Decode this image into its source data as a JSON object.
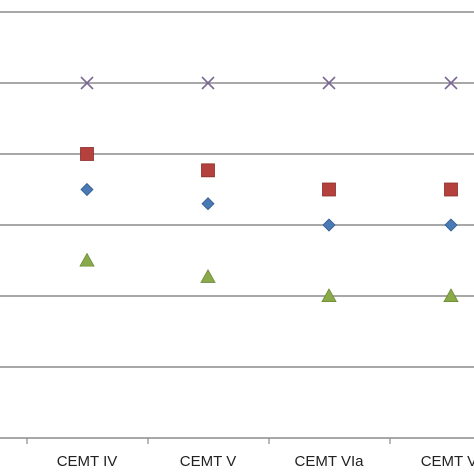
{
  "chart_data": {
    "type": "scatter",
    "title": "",
    "xlabel": "",
    "ylabel": "",
    "categories": [
      "CEMT IV",
      "CEMT V",
      "CEMT VIa",
      "CEMT VI"
    ],
    "ylim": [
      0,
      6
    ],
    "grid": true,
    "legend": "none",
    "series": [
      {
        "marker": "diamond",
        "color": "#4a7ab5",
        "values": [
          3.5,
          3.3,
          3.0,
          3.0
        ]
      },
      {
        "marker": "square",
        "color": "#b5413e",
        "values": [
          4.0,
          3.77,
          3.5,
          3.5
        ]
      },
      {
        "marker": "triangle",
        "color": "#8aaa4a",
        "values": [
          2.5,
          2.27,
          2.0,
          2.0
        ]
      },
      {
        "marker": "x",
        "color": "#7a6896",
        "values": [
          5.0,
          5.0,
          5.0,
          5.0
        ]
      }
    ]
  }
}
